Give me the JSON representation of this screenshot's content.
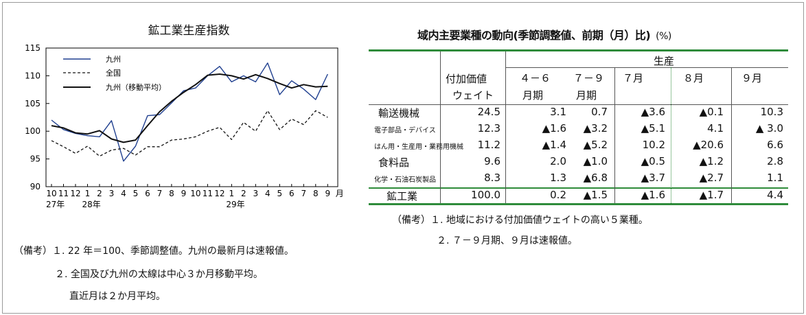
{
  "chart_title": "鉱工業生産指数",
  "chart_data": {
    "type": "line",
    "title": "鉱工業生産指数",
    "ylim": [
      90,
      115
    ],
    "yticks": [
      "90",
      "95",
      "100",
      "105",
      "110",
      "115"
    ],
    "x_tick_labels": [
      "10",
      "11",
      "12",
      "1",
      "2",
      "3",
      "4",
      "5",
      "6",
      "7",
      "8",
      "9",
      "10",
      "11",
      "12",
      "1",
      "2",
      "3",
      "4",
      "5",
      "6",
      "7",
      "8",
      "9",
      "月"
    ],
    "year_labels": [
      {
        "text": "27年",
        "at": 0
      },
      {
        "text": "28年",
        "at": 3
      },
      {
        "text": "29年",
        "at": 15
      }
    ],
    "legend_position": "top-left",
    "series": [
      {
        "name": "九州",
        "style": "solid-thin",
        "color": "#1f3f8f",
        "values": [
          102.0,
          100.3,
          99.6,
          99.2,
          99.0,
          101.9,
          94.6,
          97.3,
          102.8,
          103.0,
          105.1,
          107.3,
          107.8,
          110.0,
          111.7,
          108.9,
          110.0,
          108.9,
          112.3,
          106.6,
          109.1,
          107.6,
          105.7,
          110.3
        ]
      },
      {
        "name": "全国",
        "style": "dashed",
        "color": "#111111",
        "values": [
          98.3,
          97.2,
          96.0,
          97.3,
          95.5,
          96.6,
          96.9,
          95.7,
          97.2,
          97.2,
          98.4,
          98.6,
          99.0,
          100.0,
          100.7,
          98.5,
          101.6,
          100.0,
          103.7,
          100.3,
          102.2,
          101.2,
          103.7,
          102.5
        ]
      },
      {
        "name": "九州（移動平均）",
        "style": "solid-thick",
        "color": "#111111",
        "values": [
          101.0,
          100.6,
          99.7,
          99.5,
          100.1,
          98.6,
          98.0,
          98.4,
          101.0,
          103.5,
          105.4,
          107.0,
          108.4,
          110.1,
          110.3,
          110.0,
          109.4,
          110.2,
          109.5,
          108.6,
          107.8,
          108.4,
          108.0,
          108.1
        ]
      }
    ]
  },
  "chart_notes": [
    "（備考）１. 22 年＝100、季節調整値。九州の最新月は速報値。",
    "２. 全国及び九州の太線は中心３か月移動平均。",
    "直近月は２か月平均。"
  ],
  "table": {
    "title": "域内主要業種の動向(季節調整値、前期（月）比)",
    "unit": "(%)",
    "header_weight_1": "付加価値",
    "header_weight_2": "ウェイト",
    "header_production": "生産",
    "period_headers": [
      {
        "top": "４－６",
        "bottom": "月期"
      },
      {
        "top": "７－９",
        "bottom": "月期"
      },
      {
        "top": "７月",
        "bottom": ""
      },
      {
        "top": "８月",
        "bottom": ""
      },
      {
        "top": "９月",
        "bottom": ""
      }
    ],
    "rows": [
      {
        "name": "輸送機械",
        "small": false,
        "weight": "24.5",
        "values": [
          "3.1",
          "0.7",
          "▲3.6",
          "▲0.1",
          "10.3"
        ]
      },
      {
        "name": "電子部品・デバイス",
        "small": true,
        "weight": "12.3",
        "values": [
          "▲1.6",
          "▲3.2",
          "▲5.1",
          "4.1",
          "▲ 3.0"
        ]
      },
      {
        "name": "はん用・生産用・業務用機械",
        "small": true,
        "weight": "11.2",
        "values": [
          "▲1.4",
          "▲5.2",
          "10.2",
          "▲20.6",
          "6.6"
        ]
      },
      {
        "name": "食料品",
        "small": false,
        "weight": "9.6",
        "values": [
          "2.0",
          "▲1.0",
          "▲0.5",
          "▲1.2",
          "2.8"
        ]
      },
      {
        "name": "化学・石油石炭製品",
        "small": true,
        "weight": "8.3",
        "values": [
          "1.3",
          "▲6.8",
          "▲3.7",
          "▲2.7",
          "1.1"
        ]
      }
    ],
    "total": {
      "name": "鉱工業",
      "weight": "100.0",
      "values": [
        "0.2",
        "▲1.5",
        "▲1.6",
        "▲1.7",
        "4.4"
      ]
    }
  },
  "table_notes": [
    "（備考）１. 地域における付加価値ウェイトの高い５業種。",
    "２. ７－９月期、９月は速報値。"
  ]
}
